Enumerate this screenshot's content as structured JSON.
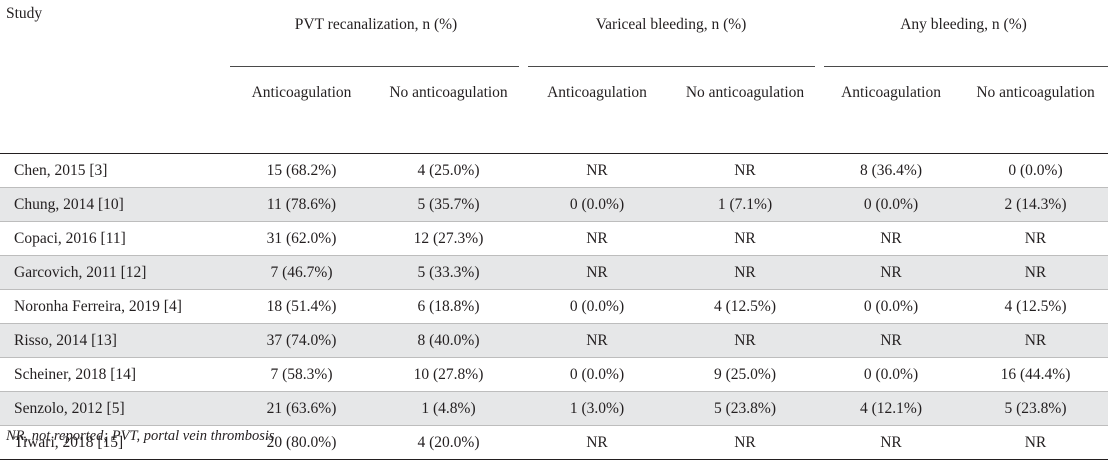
{
  "table": {
    "study_header": "Study",
    "groups": [
      {
        "label": "PVT recanalization, n (%)",
        "sub": [
          "Anticoagulation",
          "No anticoagulation"
        ]
      },
      {
        "label": "Variceal bleeding, n (%)",
        "sub": [
          "Anticoagulation",
          "No anticoagulation"
        ]
      },
      {
        "label": "Any bleeding, n (%)",
        "sub": [
          "Anticoagulation",
          "No anticoagulation"
        ]
      }
    ],
    "rows": [
      {
        "study": "Chen, 2015 [3]",
        "cells": [
          "15 (68.2%)",
          "4 (25.0%)",
          "NR",
          "NR",
          "8 (36.4%)",
          "0 (0.0%)"
        ]
      },
      {
        "study": "Chung, 2014 [10]",
        "cells": [
          "11 (78.6%)",
          "5 (35.7%)",
          "0 (0.0%)",
          "1 (7.1%)",
          "0 (0.0%)",
          "2 (14.3%)"
        ]
      },
      {
        "study": "Copaci, 2016 [11]",
        "cells": [
          "31 (62.0%)",
          "12 (27.3%)",
          "NR",
          "NR",
          "NR",
          "NR"
        ]
      },
      {
        "study": "Garcovich, 2011 [12]",
        "cells": [
          "7 (46.7%)",
          "5 (33.3%)",
          "NR",
          "NR",
          "NR",
          "NR"
        ]
      },
      {
        "study": "Noronha Ferreira, 2019 [4]",
        "cells": [
          "18 (51.4%)",
          "6 (18.8%)",
          "0 (0.0%)",
          "4 (12.5%)",
          "0 (0.0%)",
          "4 (12.5%)"
        ]
      },
      {
        "study": "Risso, 2014 [13]",
        "cells": [
          "37 (74.0%)",
          "8 (40.0%)",
          "NR",
          "NR",
          "NR",
          "NR"
        ]
      },
      {
        "study": "Scheiner, 2018 [14]",
        "cells": [
          "7 (58.3%)",
          "10 (27.8%)",
          "0 (0.0%)",
          "9 (25.0%)",
          "0 (0.0%)",
          "16 (44.4%)"
        ]
      },
      {
        "study": "Senzolo, 2012 [5]",
        "cells": [
          "21 (63.6%)",
          "1 (4.8%)",
          "1 (3.0%)",
          "5 (23.8%)",
          "4 (12.1%)",
          "5 (23.8%)"
        ]
      },
      {
        "study": "Tiwari, 2018 [15]",
        "cells": [
          "20 (80.0%)",
          "4 (20.0%)",
          "NR",
          "NR",
          "NR",
          "NR"
        ]
      }
    ]
  },
  "footnote": "NR, not reported; PVT, portal vein thrombosis",
  "colors": {
    "text": "#231f20",
    "row_shade": "#e6e7e8",
    "row_rule": "#bdbdbd"
  }
}
